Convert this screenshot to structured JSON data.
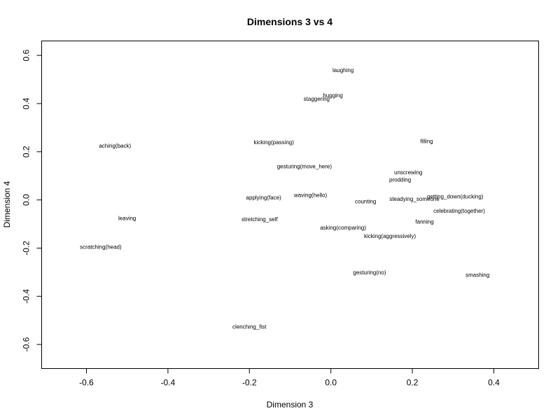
{
  "chart_data": {
    "type": "scatter",
    "title": "Dimensions 3 vs 4",
    "xlabel": "Dimension 3",
    "ylabel": "Dimension 4",
    "xlim": [
      -0.71,
      0.51
    ],
    "ylim": [
      -0.7,
      0.66
    ],
    "xticks": [
      -0.6,
      -0.4,
      -0.2,
      0.0,
      0.2,
      0.4
    ],
    "yticks": [
      -0.6,
      -0.4,
      -0.2,
      0.0,
      0.2,
      0.4,
      0.6
    ],
    "xtick_labels": [
      "-0.6",
      "-0.4",
      "-0.2",
      "0.0",
      "0.2",
      "0.4"
    ],
    "ytick_labels": [
      "-0.6",
      "-0.4",
      "-0.2",
      "0.0",
      "0.2",
      "0.4",
      "0.6"
    ],
    "points": [
      {
        "label": "laughing",
        "x": 0.03,
        "y": 0.54
      },
      {
        "label": "hugging",
        "x": 0.005,
        "y": 0.435
      },
      {
        "label": "staggering",
        "x": -0.035,
        "y": 0.42
      },
      {
        "label": "aching(back)",
        "x": -0.53,
        "y": 0.225
      },
      {
        "label": "kicking(passing)",
        "x": -0.14,
        "y": 0.24
      },
      {
        "label": "filling",
        "x": 0.235,
        "y": 0.245
      },
      {
        "label": "gesturing(move_here)",
        "x": -0.065,
        "y": 0.14
      },
      {
        "label": "unscrewing",
        "x": 0.19,
        "y": 0.115
      },
      {
        "label": "prodding",
        "x": 0.17,
        "y": 0.085
      },
      {
        "label": "applying(face)",
        "x": -0.165,
        "y": 0.01
      },
      {
        "label": "waving(hello)",
        "x": -0.05,
        "y": 0.02
      },
      {
        "label": "counting",
        "x": 0.085,
        "y": -0.005
      },
      {
        "label": "steadying_someone",
        "x": 0.205,
        "y": 0.005
      },
      {
        "label": "getting_down(ducking)",
        "x": 0.305,
        "y": 0.015
      },
      {
        "label": "celebrating(together)",
        "x": 0.315,
        "y": -0.045
      },
      {
        "label": "fanning",
        "x": 0.23,
        "y": -0.09
      },
      {
        "label": "leaving",
        "x": -0.5,
        "y": -0.075
      },
      {
        "label": "stretching_self",
        "x": -0.175,
        "y": -0.08
      },
      {
        "label": "asking(comparing)",
        "x": 0.03,
        "y": -0.115
      },
      {
        "label": "kicking(aggressively)",
        "x": 0.145,
        "y": -0.15
      },
      {
        "label": "scratching(head)",
        "x": -0.565,
        "y": -0.195
      },
      {
        "label": "gesturing(no)",
        "x": 0.095,
        "y": -0.3
      },
      {
        "label": "smashing",
        "x": 0.36,
        "y": -0.31
      },
      {
        "label": "clenching_fist",
        "x": -0.2,
        "y": -0.525
      }
    ]
  }
}
